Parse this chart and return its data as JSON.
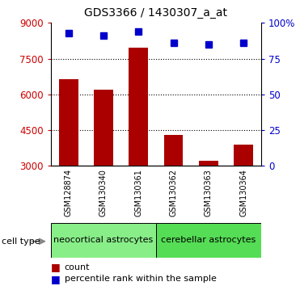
{
  "title": "GDS3366 / 1430307_a_at",
  "samples": [
    "GSM128874",
    "GSM130340",
    "GSM130361",
    "GSM130362",
    "GSM130363",
    "GSM130364"
  ],
  "counts": [
    6650,
    6200,
    7950,
    4300,
    3200,
    3900
  ],
  "percentiles": [
    93,
    91,
    94,
    86,
    85,
    86
  ],
  "ylim_left": [
    3000,
    9000
  ],
  "yticks_left": [
    3000,
    4500,
    6000,
    7500,
    9000
  ],
  "ylim_right": [
    0,
    100
  ],
  "yticks_right": [
    0,
    25,
    50,
    75,
    100
  ],
  "bar_color": "#aa0000",
  "dot_color": "#0000cc",
  "bar_width": 0.55,
  "groups": [
    {
      "label": "neocortical astrocytes",
      "indices": [
        0,
        1,
        2
      ],
      "color": "#88ee88"
    },
    {
      "label": "cerebellar astrocytes",
      "indices": [
        3,
        4,
        5
      ],
      "color": "#55dd55"
    }
  ],
  "cell_type_label": "cell type",
  "legend_count_label": "count",
  "legend_percentile_label": "percentile rank within the sample",
  "tick_label_color_left": "#cc0000",
  "tick_label_color_right": "#0000cc",
  "background_color": "#ffffff",
  "sample_box_color": "#cccccc",
  "separator_color": "#ffffff"
}
